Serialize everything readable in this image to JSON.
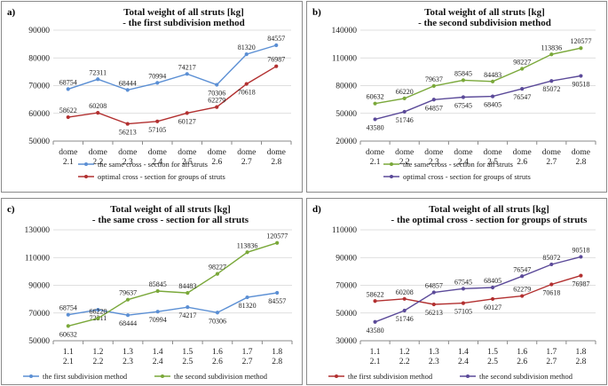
{
  "colors": {
    "blue": "#5b8fd4",
    "red": "#b23030",
    "green": "#7aa83a",
    "purple": "#5b4a99"
  },
  "chart_data": [
    {
      "type": "line",
      "panel_label": "a)",
      "title": [
        "Total weight of all struts [kg]",
        "- the first subdivision method"
      ],
      "categories": [
        [
          "dome",
          "2.1"
        ],
        [
          "dome",
          "2.2"
        ],
        [
          "dome",
          "2.3"
        ],
        [
          "dome",
          "2.4"
        ],
        [
          "dome",
          "2.5"
        ],
        [
          "dome",
          "2.6"
        ],
        [
          "dome",
          "2.7"
        ],
        [
          "dome",
          "2.8"
        ]
      ],
      "ylim": [
        50000,
        90000
      ],
      "yticks": [
        50000,
        60000,
        70000,
        80000,
        90000
      ],
      "ytick_labels": [
        "50000",
        "60000",
        "70000",
        "80000",
        "90000"
      ],
      "grid": true,
      "legend_position": "bottom",
      "series": [
        {
          "name": "the same cross - section for all struts",
          "color": "#5b8fd4",
          "values": [
            68754,
            72311,
            68444,
            70994,
            74217,
            70306,
            81320,
            84557
          ],
          "labels": [
            "68754",
            "72311",
            "68444",
            "70994",
            "74217",
            "70306",
            "81320",
            "84557"
          ],
          "label_dir": [
            -1,
            -1,
            -1,
            -1,
            -1,
            1,
            -1,
            -1
          ]
        },
        {
          "name": "optimal cross - section for groups of struts",
          "color": "#b23030",
          "values": [
            58622,
            60208,
            56213,
            57105,
            60127,
            62279,
            70618,
            76987
          ],
          "labels": [
            "58622",
            "60208",
            "56213",
            "57105",
            "60127",
            "62279",
            "70618",
            "76987"
          ],
          "label_dir": [
            -1,
            -1,
            1,
            1,
            1,
            -1,
            1,
            -1
          ]
        }
      ]
    },
    {
      "type": "line",
      "panel_label": "b)",
      "title": [
        "Total weight of all struts [kg]",
        "- the second subdivision method"
      ],
      "categories": [
        [
          "dome",
          "2.1"
        ],
        [
          "dome",
          "2.2"
        ],
        [
          "dome",
          "2.3"
        ],
        [
          "dome",
          "2.4"
        ],
        [
          "dome",
          "2.5"
        ],
        [
          "dome",
          "2.6"
        ],
        [
          "dome",
          "2.7"
        ],
        [
          "dome",
          "2.8"
        ]
      ],
      "ylim": [
        20000,
        140000
      ],
      "yticks": [
        20000,
        50000,
        80000,
        110000,
        140000
      ],
      "ytick_labels": [
        "20000",
        "50000",
        "80000",
        "110000",
        "140000"
      ],
      "grid": true,
      "legend_position": "bottom",
      "series": [
        {
          "name": "the same cross - section for all struts",
          "color": "#7aa83a",
          "values": [
            60632,
            66220,
            79637,
            85845,
            84483,
            98227,
            113836,
            120577
          ],
          "labels": [
            "60632",
            "66220",
            "79637",
            "85845",
            "84483",
            "98227",
            "113836",
            "120577"
          ],
          "label_dir": [
            -1,
            -1,
            -1,
            -1,
            -1,
            -1,
            -1,
            -1
          ]
        },
        {
          "name": "optimal cross - section for groups of struts",
          "color": "#5b4a99",
          "values": [
            43580,
            51746,
            64857,
            67545,
            68405,
            76547,
            85072,
            90518
          ],
          "labels": [
            "43580",
            "51746",
            "64857",
            "67545",
            "68405",
            "76547",
            "85072",
            "90518"
          ],
          "label_dir": [
            1,
            1,
            1,
            1,
            1,
            1,
            1,
            1
          ]
        }
      ]
    },
    {
      "type": "line",
      "panel_label": "c)",
      "title": [
        "Total weight of all struts [kg]",
        "- the same cross - section for all struts"
      ],
      "categories": [
        [
          "1.1",
          "2.1"
        ],
        [
          "1.2",
          "2.2"
        ],
        [
          "1.3",
          "2.3"
        ],
        [
          "1.4",
          "2.4"
        ],
        [
          "1.5",
          "2.5"
        ],
        [
          "1.6",
          "2.6"
        ],
        [
          "1.7",
          "2.7"
        ],
        [
          "1.8",
          "2.8"
        ]
      ],
      "ylim": [
        50000,
        130000
      ],
      "yticks": [
        50000,
        70000,
        90000,
        110000,
        130000
      ],
      "ytick_labels": [
        "50000",
        "70000",
        "90000",
        "110000",
        "130000"
      ],
      "grid": true,
      "legend_position": "bottom",
      "series": [
        {
          "name": "the first subdivision method",
          "color": "#5b8fd4",
          "values": [
            68754,
            72311,
            68444,
            70994,
            74217,
            70306,
            81320,
            84557
          ],
          "labels": [
            "68754",
            "72311",
            "68444",
            "70994",
            "74217",
            "70306",
            "81320",
            "84557"
          ],
          "label_dir": [
            -1,
            1,
            1,
            1,
            1,
            1,
            1,
            1
          ]
        },
        {
          "name": "the second subdivision method",
          "color": "#7aa83a",
          "values": [
            60632,
            66220,
            79637,
            85845,
            84483,
            98227,
            113836,
            120577
          ],
          "labels": [
            "60632",
            "66220",
            "79637",
            "85845",
            "84483",
            "98227",
            "113836",
            "120577"
          ],
          "label_dir": [
            1,
            -1,
            -1,
            -1,
            -1,
            -1,
            -1,
            -1
          ]
        }
      ]
    },
    {
      "type": "line",
      "panel_label": "d)",
      "title": [
        "Total weight of all struts [kg]",
        "- the optimal cross - section for groups of struts"
      ],
      "categories": [
        [
          "1.1",
          "2.1"
        ],
        [
          "1.2",
          "2.2"
        ],
        [
          "1.3",
          "2.3"
        ],
        [
          "1.4",
          "2.4"
        ],
        [
          "1.5",
          "2.5"
        ],
        [
          "1.6",
          "2.6"
        ],
        [
          "1.7",
          "2.7"
        ],
        [
          "1.8",
          "2.8"
        ]
      ],
      "ylim": [
        30000,
        110000
      ],
      "yticks": [
        30000,
        50000,
        70000,
        90000,
        110000
      ],
      "ytick_labels": [
        "30000",
        "50000",
        "70000",
        "90000",
        "110000"
      ],
      "grid": true,
      "legend_position": "bottom",
      "series": [
        {
          "name": "the first subdivision method",
          "color": "#b23030",
          "values": [
            58622,
            60208,
            56213,
            57105,
            60127,
            62279,
            70618,
            76987
          ],
          "labels": [
            "58622",
            "60208",
            "56213",
            "57105",
            "60127",
            "62279",
            "70618",
            "76987"
          ],
          "label_dir": [
            -1,
            -1,
            1,
            1,
            1,
            -1,
            1,
            1
          ]
        },
        {
          "name": "the second subdivision method",
          "color": "#5b4a99",
          "values": [
            43580,
            51746,
            64857,
            67545,
            68405,
            76547,
            85072,
            90518
          ],
          "labels": [
            "43580",
            "51746",
            "64857",
            "67545",
            "68405",
            "76547",
            "85072",
            "90518"
          ],
          "label_dir": [
            1,
            1,
            -1,
            -1,
            -1,
            -1,
            -1,
            -1
          ]
        }
      ]
    }
  ]
}
